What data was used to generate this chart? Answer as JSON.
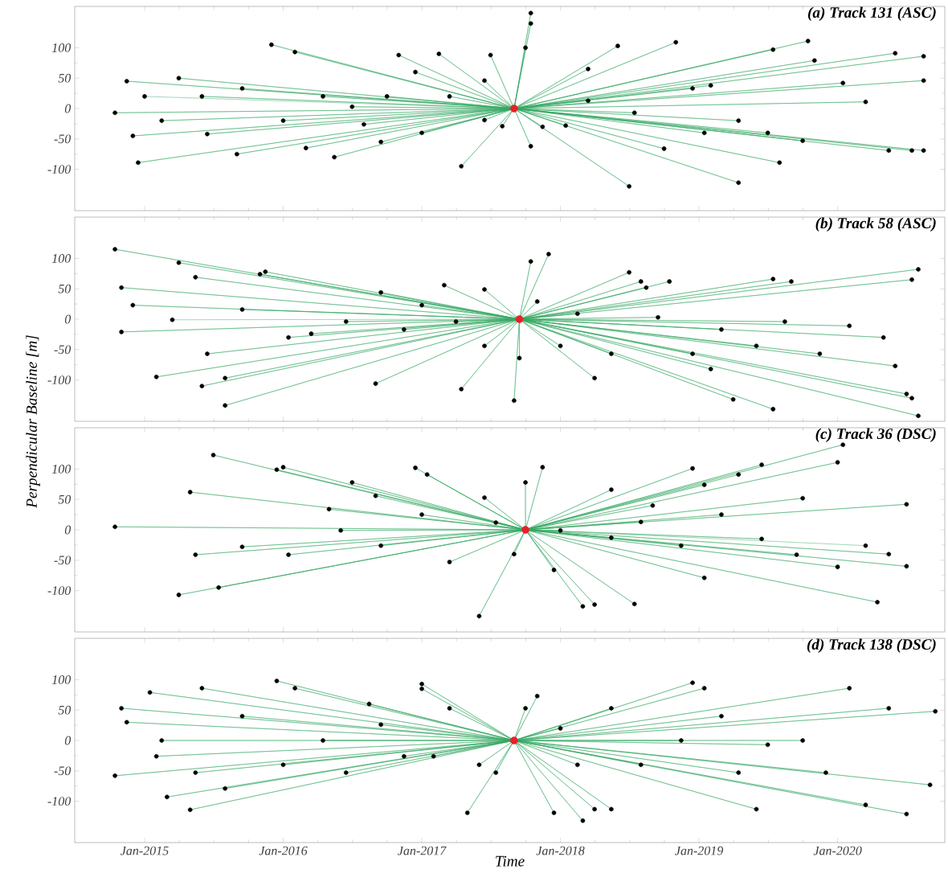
{
  "chart_data": [
    {
      "type": "scatter",
      "title": "(a) Track 131 (ASC)",
      "xlim": [
        "2014-07-01",
        "2020-10-10"
      ],
      "ylim": [
        -168,
        168
      ],
      "tick_labels": "y",
      "xticks": [
        {
          "value": "2015-01-01",
          "label": null
        },
        {
          "value": "2016-01-01",
          "label": null
        },
        {
          "value": "2017-01-01",
          "label": null
        },
        {
          "value": "2018-01-01",
          "label": null
        },
        {
          "value": "2019-01-01",
          "label": null
        },
        {
          "value": "2020-01-01",
          "label": null
        }
      ],
      "yticks": [
        -100,
        -50,
        0,
        50,
        100
      ],
      "series": [
        {
          "type": "line",
          "marker": "none",
          "color": "#35a863",
          "x": [
            "2017-09-01",
            "2014-10-15",
            "2017-09-01",
            "2014-11-15",
            "2017-09-01",
            "2014-12-15",
            "2017-09-01",
            "2014-12-01",
            "2017-09-01",
            "2015-04-01",
            "2017-09-01",
            "2015-06-15",
            "2017-09-01",
            "2015-09-01",
            "2017-09-01",
            "2015-12-01",
            "2017-09-01",
            "2016-02-01",
            "2017-09-01",
            "2016-03-01",
            "2017-09-01",
            "2016-05-15",
            "2017-09-01",
            "2016-07-01",
            "2017-09-01",
            "2016-09-15",
            "2017-09-01",
            "2016-11-01",
            "2017-09-01",
            "2016-12-15",
            "2017-09-01",
            "2017-02-15",
            "2017-09-01",
            "2017-04-15",
            "2017-09-01",
            "2017-06-15",
            "2017-09-01",
            "2017-07-01",
            "2017-09-01",
            "2017-08-01",
            "2017-09-01",
            "2017-10-01",
            "2017-09-01",
            "2017-10-15",
            "2017-09-01",
            "2017-10-15",
            "2017-09-01",
            "2017-10-15",
            "2017-09-01",
            "2017-11-15",
            "2017-09-01",
            "2018-01-15",
            "2017-09-01",
            "2018-03-15",
            "2017-09-01",
            "2018-06-01",
            "2017-09-01",
            "2018-07-01",
            "2017-09-01",
            "2018-10-01",
            "2017-09-01",
            "2018-11-01",
            "2017-09-01",
            "2019-02-01",
            "2017-09-01",
            "2019-04-15",
            "2017-09-01",
            "2019-07-15",
            "2017-09-01",
            "2019-08-01",
            "2017-09-01",
            "2019-10-15",
            "2017-09-01",
            "2019-11-01",
            "2017-09-01",
            "2020-01-15",
            "2017-09-01",
            "2020-03-15",
            "2017-09-01",
            "2020-05-15",
            "2017-09-01",
            "2020-06-01",
            "2017-09-01",
            "2020-07-15",
            "2017-09-01",
            "2020-08-15",
            "2017-09-01",
            "2020-08-15",
            "2017-09-01",
            "2020-08-15",
            "2017-09-01",
            "2019-10-01",
            "2017-09-01",
            "2019-07-01",
            "2017-09-01",
            "2019-04-15",
            "2017-09-01",
            "2019-01-15",
            "2017-09-01",
            "2018-12-15",
            "2017-09-01",
            "2018-07-15",
            "2017-09-01",
            "2018-03-15",
            "2017-09-01",
            "2017-06-15",
            "2017-09-01",
            "2017-03-15",
            "2017-09-01",
            "2017-01-01",
            "2017-09-01",
            "2016-10-01",
            "2017-09-01",
            "2016-08-01",
            "2017-09-01",
            "2016-04-15",
            "2017-09-01",
            "2016-01-01",
            "2017-09-01",
            "2015-09-15",
            "2017-09-01",
            "2015-06-01",
            "2017-09-01",
            "2015-02-15",
            "2017-09-01",
            "2015-01-01"
          ],
          "values": [
            0,
            -7,
            0,
            45,
            0,
            -89,
            0,
            -45,
            0,
            50,
            0,
            -42,
            0,
            -75,
            0,
            105,
            0,
            93,
            0,
            -65,
            0,
            -80,
            0,
            3,
            0,
            -55,
            0,
            88,
            0,
            60,
            0,
            90,
            0,
            -95,
            0,
            -19,
            0,
            88,
            0,
            -29,
            0,
            100,
            0,
            140,
            0,
            157,
            0,
            -62,
            0,
            -30,
            0,
            -28,
            0,
            65,
            0,
            103,
            0,
            -128,
            0,
            -66,
            0,
            109,
            0,
            38,
            0,
            -122,
            0,
            97,
            0,
            -89,
            0,
            111,
            0,
            79,
            0,
            42,
            0,
            11,
            0,
            -69,
            0,
            91,
            0,
            -69,
            0,
            -69,
            0,
            86,
            0,
            46,
            0,
            -53,
            0,
            -40,
            0,
            -20,
            0,
            -40,
            0,
            33,
            0,
            -7,
            0,
            13,
            0,
            46,
            0,
            20,
            0,
            -40,
            0,
            20,
            0,
            -26,
            0,
            20,
            0,
            -20,
            0,
            33,
            0,
            20,
            0,
            -20,
            0,
            20
          ]
        },
        {
          "color": "#000000",
          "marker": "circle",
          "x": [
            "2014-10-15",
            "2014-11-15",
            "2014-12-15",
            "2014-12-01",
            "2015-04-01",
            "2015-06-15",
            "2015-09-01",
            "2015-12-01",
            "2016-02-01",
            "2016-03-01",
            "2016-05-15",
            "2016-07-01",
            "2016-09-15",
            "2016-11-01",
            "2016-12-15",
            "2017-02-15",
            "2017-04-15",
            "2017-06-15",
            "2017-07-01",
            "2017-08-01",
            "2017-10-01",
            "2017-10-15",
            "2017-10-15",
            "2017-10-15",
            "2017-11-15",
            "2018-01-15",
            "2018-03-15",
            "2018-06-01",
            "2018-07-01",
            "2018-10-01",
            "2018-11-01",
            "2019-02-01",
            "2019-04-15",
            "2019-07-15",
            "2019-08-01",
            "2019-10-15",
            "2019-11-01",
            "2020-01-15",
            "2020-03-15",
            "2020-05-15",
            "2020-06-01",
            "2020-07-15",
            "2020-08-15",
            "2020-08-15",
            "2020-08-15",
            "2019-10-01",
            "2019-07-01",
            "2019-04-15",
            "2019-01-15",
            "2018-12-15",
            "2018-07-15",
            "2018-03-15",
            "2017-06-15",
            "2017-03-15",
            "2017-01-01",
            "2016-10-01",
            "2016-08-01",
            "2016-04-15",
            "2016-01-01",
            "2015-09-15",
            "2015-06-01",
            "2015-02-15",
            "2015-01-01"
          ],
          "values": [
            -7,
            45,
            -89,
            -45,
            50,
            -42,
            -75,
            105,
            93,
            -65,
            -80,
            3,
            -55,
            88,
            60,
            90,
            -95,
            -19,
            88,
            -29,
            100,
            140,
            157,
            -62,
            -30,
            -28,
            65,
            103,
            -128,
            -66,
            109,
            38,
            -122,
            97,
            -89,
            111,
            79,
            42,
            11,
            -69,
            91,
            -69,
            -69,
            86,
            46,
            -53,
            -40,
            -20,
            -40,
            33,
            -7,
            13,
            46,
            20,
            -40,
            20,
            -26,
            20,
            -20,
            33,
            20,
            -20,
            20
          ]
        },
        {
          "color": "#e8202a",
          "marker": "circle",
          "x": [
            "2017-09-01"
          ],
          "values": [
            0
          ]
        }
      ]
    },
    {
      "type": "scatter",
      "title": "(b) Track 58 (ASC)",
      "ylabel": "Perpendicular Baseline [m]",
      "xlim": [
        "2014-07-01",
        "2020-10-10"
      ],
      "ylim": [
        -168,
        168
      ],
      "tick_labels": "y",
      "xticks": [
        {
          "value": "2015-01-01",
          "label": null
        },
        {
          "value": "2016-01-01",
          "label": null
        },
        {
          "value": "2017-01-01",
          "label": null
        },
        {
          "value": "2018-01-01",
          "label": null
        },
        {
          "value": "2019-01-01",
          "label": null
        },
        {
          "value": "2020-01-01",
          "label": null
        }
      ],
      "yticks": [
        -100,
        -50,
        0,
        50,
        100
      ],
      "series": [
        {
          "type": "line",
          "marker": "none",
          "color": "#35a863",
          "x": [
            "2017-09-15",
            "2014-10-15",
            "2017-09-15",
            "2014-11-01",
            "2017-09-15",
            "2014-12-01",
            "2017-09-15",
            "2014-11-01",
            "2017-09-15",
            "2015-02-01",
            "2017-09-15",
            "2015-04-01",
            "2017-09-15",
            "2015-05-15",
            "2017-09-15",
            "2015-08-01",
            "2017-09-15",
            "2015-06-01",
            "2017-09-15",
            "2015-11-01",
            "2017-09-15",
            "2015-11-15",
            "2017-09-15",
            "2015-08-01",
            "2017-09-15",
            "2015-06-15",
            "2017-09-15",
            "2016-03-15",
            "2017-09-15",
            "2016-09-15",
            "2017-09-15",
            "2016-09-01",
            "2017-09-15",
            "2017-03-01",
            "2017-09-15",
            "2017-04-15",
            "2017-09-15",
            "2017-06-15",
            "2017-09-15",
            "2017-09-01",
            "2017-09-15",
            "2017-09-15",
            "2017-09-15",
            "2017-10-15",
            "2017-09-15",
            "2017-12-01",
            "2017-09-15",
            "2017-11-01",
            "2017-09-15",
            "2018-01-01",
            "2017-09-15",
            "2018-07-01",
            "2017-09-15",
            "2018-08-01",
            "2017-09-15",
            "2018-08-15",
            "2017-09-15",
            "2018-10-15",
            "2017-09-15",
            "2019-02-01",
            "2017-09-15",
            "2019-04-01",
            "2017-09-15",
            "2019-07-15",
            "2017-09-15",
            "2019-07-15",
            "2017-09-15",
            "2019-09-01",
            "2017-09-15",
            "2020-07-15",
            "2017-09-15",
            "2020-08-01",
            "2017-09-15",
            "2020-08-01",
            "2017-09-15",
            "2020-07-15",
            "2017-09-15",
            "2020-07-01",
            "2017-09-15",
            "2020-06-01",
            "2017-09-15",
            "2020-05-01",
            "2017-09-15",
            "2020-02-01",
            "2017-09-15",
            "2019-11-15",
            "2017-09-15",
            "2019-08-15",
            "2017-09-15",
            "2019-06-01",
            "2017-09-15",
            "2019-03-01",
            "2017-09-15",
            "2018-12-15",
            "2017-09-15",
            "2018-09-15",
            "2017-09-15",
            "2018-05-15",
            "2017-09-15",
            "2018-02-15",
            "2017-09-15",
            "2018-04-01",
            "2017-09-15",
            "2017-06-15",
            "2017-09-15",
            "2017-04-01",
            "2017-09-15",
            "2017-01-01",
            "2017-09-15",
            "2016-11-15",
            "2017-09-15",
            "2016-06-15",
            "2017-09-15",
            "2016-01-15",
            "2017-09-15",
            "2015-09-15",
            "2017-09-15",
            "2015-03-15"
          ],
          "values": [
            0,
            115,
            0,
            52,
            0,
            23,
            0,
            -21,
            0,
            -95,
            0,
            93,
            0,
            69,
            0,
            -142,
            0,
            -110,
            0,
            74,
            0,
            78,
            0,
            -97,
            0,
            -57,
            0,
            -24,
            0,
            44,
            0,
            -106,
            0,
            56,
            0,
            -115,
            0,
            49,
            0,
            -134,
            0,
            -64,
            0,
            95,
            0,
            107,
            0,
            29,
            0,
            -44,
            0,
            77,
            0,
            62,
            0,
            52,
            0,
            62,
            0,
            -82,
            0,
            -132,
            0,
            66,
            0,
            -148,
            0,
            62,
            0,
            65,
            0,
            82,
            0,
            -159,
            0,
            -130,
            0,
            -123,
            0,
            -77,
            0,
            -30,
            0,
            -11,
            0,
            -57,
            0,
            -4,
            0,
            -44,
            0,
            -17,
            0,
            -57,
            0,
            3,
            0,
            -57,
            0,
            9,
            0,
            -97,
            0,
            -44,
            0,
            -4,
            0,
            23,
            0,
            -17,
            0,
            -4,
            0,
            -30,
            0,
            16,
            0,
            -1
          ]
        },
        {
          "color": "#000000",
          "marker": "circle",
          "x": [
            "2014-10-15",
            "2014-11-01",
            "2014-12-01",
            "2014-11-01",
            "2015-02-01",
            "2015-04-01",
            "2015-05-15",
            "2015-08-01",
            "2015-06-01",
            "2015-11-01",
            "2015-11-15",
            "2015-08-01",
            "2015-06-15",
            "2016-03-15",
            "2016-09-15",
            "2016-09-01",
            "2017-03-01",
            "2017-04-15",
            "2017-06-15",
            "2017-09-01",
            "2017-09-15",
            "2017-10-15",
            "2017-12-01",
            "2017-11-01",
            "2018-01-01",
            "2018-07-01",
            "2018-08-01",
            "2018-08-15",
            "2018-10-15",
            "2019-02-01",
            "2019-04-01",
            "2019-07-15",
            "2019-07-15",
            "2019-09-01",
            "2020-07-15",
            "2020-08-01",
            "2020-08-01",
            "2020-07-15",
            "2020-07-01",
            "2020-06-01",
            "2020-05-01",
            "2020-02-01",
            "2019-11-15",
            "2019-08-15",
            "2019-06-01",
            "2019-03-01",
            "2018-12-15",
            "2018-09-15",
            "2018-05-15",
            "2018-02-15",
            "2018-04-01",
            "2017-06-15",
            "2017-04-01",
            "2017-01-01",
            "2016-11-15",
            "2016-06-15",
            "2016-01-15",
            "2015-09-15",
            "2015-03-15"
          ],
          "values": [
            115,
            52,
            23,
            -21,
            -95,
            93,
            69,
            -142,
            -110,
            74,
            78,
            -97,
            -57,
            -24,
            44,
            -106,
            56,
            -115,
            49,
            -134,
            -64,
            95,
            107,
            29,
            -44,
            77,
            62,
            52,
            62,
            -82,
            -132,
            66,
            -148,
            62,
            65,
            82,
            -159,
            -130,
            -123,
            -77,
            -30,
            -11,
            -57,
            -4,
            -44,
            -17,
            -57,
            3,
            -57,
            9,
            -97,
            -44,
            -4,
            23,
            -17,
            -4,
            -30,
            16,
            -1
          ]
        },
        {
          "color": "#e8202a",
          "marker": "circle",
          "x": [
            "2017-09-15"
          ],
          "values": [
            0
          ]
        }
      ]
    },
    {
      "type": "scatter",
      "title": "(c) Track 36 (DSC)",
      "xlim": [
        "2014-07-01",
        "2020-10-10"
      ],
      "ylim": [
        -168,
        168
      ],
      "tick_labels": "y",
      "xticks": [
        {
          "value": "2015-01-01",
          "label": null
        },
        {
          "value": "2016-01-01",
          "label": null
        },
        {
          "value": "2017-01-01",
          "label": null
        },
        {
          "value": "2018-01-01",
          "label": null
        },
        {
          "value": "2019-01-01",
          "label": null
        },
        {
          "value": "2020-01-01",
          "label": null
        }
      ],
      "yticks": [
        -100,
        -50,
        0,
        50,
        100
      ],
      "series": [
        {
          "type": "line",
          "marker": "none",
          "color": "#35a863",
          "x": [
            "2017-10-01",
            "2014-10-15",
            "2017-10-01",
            "2015-04-01",
            "2017-10-01",
            "2015-05-01",
            "2017-10-01",
            "2015-05-15",
            "2017-10-01",
            "2015-07-01",
            "2017-10-01",
            "2015-07-15",
            "2017-10-01",
            "2015-12-15",
            "2017-10-01",
            "2016-01-01",
            "2017-10-01",
            "2016-05-01",
            "2017-10-01",
            "2016-07-01",
            "2017-10-01",
            "2016-09-01",
            "2017-10-01",
            "2016-12-15",
            "2017-10-01",
            "2017-01-15",
            "2017-10-01",
            "2017-06-01",
            "2017-10-01",
            "2017-07-15",
            "2017-10-01",
            "2017-09-01",
            "2017-10-01",
            "2017-11-15",
            "2017-10-01",
            "2017-10-01",
            "2017-10-01",
            "2017-12-15",
            "2017-10-01",
            "2018-03-01",
            "2017-10-01",
            "2018-04-01",
            "2017-10-01",
            "2018-07-15",
            "2017-10-01",
            "2018-09-01",
            "2017-10-01",
            "2018-12-15",
            "2017-10-01",
            "2019-01-15",
            "2017-10-01",
            "2019-03-01",
            "2017-10-01",
            "2019-04-15",
            "2017-10-01",
            "2019-06-15",
            "2017-10-01",
            "2020-01-15",
            "2017-10-01",
            "2020-01-01",
            "2017-10-01",
            "2020-07-01",
            "2017-10-01",
            "2020-07-01",
            "2017-10-01",
            "2020-04-15",
            "2017-10-01",
            "2020-05-15",
            "2017-10-01",
            "2020-01-01",
            "2017-10-01",
            "2019-09-15",
            "2017-10-01",
            "2019-06-15",
            "2017-10-01",
            "2019-01-15",
            "2017-10-01",
            "2018-11-15",
            "2017-10-01",
            "2018-08-01",
            "2017-10-01",
            "2018-05-15",
            "2017-10-01",
            "2018-01-01",
            "2017-10-01",
            "2017-03-15",
            "2017-10-01",
            "2017-01-01",
            "2017-10-01",
            "2016-09-15",
            "2017-10-01",
            "2016-06-01",
            "2017-10-01",
            "2016-01-15",
            "2017-10-01",
            "2015-09-15",
            "2017-10-01",
            "2017-06-15",
            "2017-10-01",
            "2018-05-15",
            "2017-10-01",
            "2019-10-01",
            "2017-10-01",
            "2020-03-15"
          ],
          "values": [
            0,
            5,
            0,
            -107,
            0,
            62,
            0,
            -41,
            0,
            123,
            0,
            -95,
            0,
            99,
            0,
            103,
            0,
            34,
            0,
            78,
            0,
            56,
            0,
            102,
            0,
            91,
            0,
            -142,
            0,
            12,
            0,
            -40,
            0,
            103,
            0,
            78,
            0,
            -66,
            0,
            -126,
            0,
            -123,
            0,
            -122,
            0,
            40,
            0,
            101,
            0,
            74,
            0,
            25,
            0,
            91,
            0,
            107,
            0,
            140,
            0,
            111,
            0,
            42,
            0,
            -60,
            0,
            -119,
            0,
            -40,
            0,
            -61,
            0,
            -41,
            0,
            -15,
            0,
            -79,
            0,
            -26,
            0,
            13,
            0,
            -13,
            0,
            -1,
            0,
            -53,
            0,
            25,
            0,
            -26,
            0,
            -1,
            0,
            -41,
            0,
            -28,
            0,
            53,
            0,
            66,
            0,
            52,
            0,
            -26
          ]
        },
        {
          "color": "#000000",
          "marker": "circle",
          "x": [
            "2014-10-15",
            "2015-04-01",
            "2015-05-01",
            "2015-05-15",
            "2015-07-01",
            "2015-07-15",
            "2015-12-15",
            "2016-01-01",
            "2016-05-01",
            "2016-07-01",
            "2016-09-01",
            "2016-12-15",
            "2017-01-15",
            "2017-06-01",
            "2017-07-15",
            "2017-09-01",
            "2017-11-15",
            "2017-10-01",
            "2017-12-15",
            "2018-03-01",
            "2018-04-01",
            "2018-07-15",
            "2018-09-01",
            "2018-12-15",
            "2019-01-15",
            "2019-03-01",
            "2019-04-15",
            "2019-06-15",
            "2020-01-15",
            "2020-01-01",
            "2020-07-01",
            "2020-07-01",
            "2020-04-15",
            "2020-05-15",
            "2020-01-01",
            "2019-09-15",
            "2019-06-15",
            "2019-01-15",
            "2018-11-15",
            "2018-08-01",
            "2018-05-15",
            "2018-01-01",
            "2017-03-15",
            "2017-01-01",
            "2016-09-15",
            "2016-06-01",
            "2016-01-15",
            "2015-09-15",
            "2017-06-15",
            "2018-05-15",
            "2019-10-01",
            "2020-03-15"
          ],
          "values": [
            5,
            -107,
            62,
            -41,
            123,
            -95,
            99,
            103,
            34,
            78,
            56,
            102,
            91,
            -142,
            12,
            -40,
            103,
            78,
            -66,
            -126,
            -123,
            -122,
            40,
            101,
            74,
            25,
            91,
            107,
            140,
            111,
            42,
            -60,
            -119,
            -40,
            -61,
            -41,
            -15,
            -79,
            -26,
            13,
            -13,
            -1,
            -53,
            25,
            -26,
            -1,
            -41,
            -28,
            53,
            66,
            52,
            -26
          ]
        },
        {
          "color": "#e8202a",
          "marker": "circle",
          "x": [
            "2017-10-01"
          ],
          "values": [
            0
          ]
        }
      ]
    },
    {
      "type": "scatter",
      "title": "(d) Track 138 (DSC)",
      "xlabel": "Time",
      "xlim": [
        "2014-07-01",
        "2020-10-10"
      ],
      "ylim": [
        -168,
        168
      ],
      "xticks": [
        {
          "value": "2015-01-01",
          "label": "Jan-2015"
        },
        {
          "value": "2016-01-01",
          "label": "Jan-2016"
        },
        {
          "value": "2017-01-01",
          "label": "Jan-2017"
        },
        {
          "value": "2018-01-01",
          "label": "Jan-2018"
        },
        {
          "value": "2019-01-01",
          "label": "Jan-2019"
        },
        {
          "value": "2020-01-01",
          "label": "Jan-2020"
        }
      ],
      "yticks": [
        -100,
        -50,
        0,
        50,
        100
      ],
      "series": [
        {
          "type": "line",
          "marker": "none",
          "color": "#35a863",
          "x": [
            "2017-09-01",
            "2014-10-15",
            "2017-09-01",
            "2014-11-01",
            "2017-09-01",
            "2014-11-15",
            "2017-09-01",
            "2015-01-15",
            "2017-09-01",
            "2015-03-01",
            "2017-09-01",
            "2015-05-01",
            "2017-09-01",
            "2015-06-01",
            "2017-09-01",
            "2015-12-15",
            "2017-09-01",
            "2016-02-01",
            "2017-09-01",
            "2016-08-15",
            "2017-09-01",
            "2017-01-01",
            "2017-09-01",
            "2017-01-01",
            "2017-09-01",
            "2017-03-15",
            "2017-09-01",
            "2017-05-01",
            "2017-09-01",
            "2017-06-01",
            "2017-09-01",
            "2017-10-01",
            "2017-09-01",
            "2017-11-01",
            "2017-09-01",
            "2017-12-15",
            "2017-09-01",
            "2018-03-01",
            "2017-09-01",
            "2018-04-01",
            "2017-09-01",
            "2018-05-15",
            "2017-09-01",
            "2018-08-01",
            "2017-09-01",
            "2018-12-15",
            "2017-09-01",
            "2019-01-15",
            "2017-09-01",
            "2019-06-01",
            "2017-09-01",
            "2019-07-01",
            "2017-09-01",
            "2020-02-01",
            "2017-09-01",
            "2020-03-15",
            "2017-09-01",
            "2020-07-01",
            "2017-09-01",
            "2020-09-01",
            "2017-09-01",
            "2020-09-15",
            "2017-09-01",
            "2020-05-15",
            "2017-09-01",
            "2019-10-01",
            "2017-09-01",
            "2019-12-01",
            "2017-09-01",
            "2019-04-15",
            "2017-09-01",
            "2018-11-15",
            "2017-09-01",
            "2019-03-01",
            "2017-09-01",
            "2018-05-15",
            "2017-09-01",
            "2018-02-15",
            "2017-09-01",
            "2018-01-01",
            "2017-09-01",
            "2017-07-15",
            "2017-09-01",
            "2016-11-15",
            "2017-09-01",
            "2016-09-15",
            "2017-09-01",
            "2016-06-15",
            "2017-09-01",
            "2016-04-15",
            "2017-09-01",
            "2016-01-01",
            "2017-09-01",
            "2015-09-15",
            "2017-09-01",
            "2015-08-01",
            "2017-09-01",
            "2015-05-15",
            "2017-09-01",
            "2015-02-15",
            "2017-09-01",
            "2015-02-01",
            "2017-09-01",
            "2017-02-01"
          ],
          "values": [
            0,
            -58,
            0,
            53,
            0,
            30,
            0,
            79,
            0,
            -93,
            0,
            -114,
            0,
            86,
            0,
            98,
            0,
            86,
            0,
            60,
            0,
            93,
            0,
            85,
            0,
            53,
            0,
            -119,
            0,
            -40,
            0,
            53,
            0,
            73,
            0,
            -119,
            0,
            -132,
            0,
            -113,
            0,
            -113,
            0,
            -40,
            0,
            95,
            0,
            86,
            0,
            -113,
            0,
            -7,
            0,
            86,
            0,
            -106,
            0,
            -121,
            0,
            -73,
            0,
            48,
            0,
            53,
            0,
            0,
            0,
            -53,
            0,
            -53,
            0,
            0,
            0,
            40,
            0,
            53,
            0,
            -40,
            0,
            20,
            0,
            -53,
            0,
            -26,
            0,
            26,
            0,
            -53,
            0,
            0,
            0,
            -40,
            0,
            40,
            0,
            -79,
            0,
            -53,
            0,
            0,
            0,
            -26,
            0,
            -26
          ]
        },
        {
          "color": "#000000",
          "marker": "circle",
          "x": [
            "2014-10-15",
            "2014-11-01",
            "2014-11-15",
            "2015-01-15",
            "2015-03-01",
            "2015-05-01",
            "2015-06-01",
            "2015-12-15",
            "2016-02-01",
            "2016-08-15",
            "2017-01-01",
            "2017-01-01",
            "2017-03-15",
            "2017-05-01",
            "2017-06-01",
            "2017-10-01",
            "2017-11-01",
            "2017-12-15",
            "2018-03-01",
            "2018-04-01",
            "2018-05-15",
            "2018-08-01",
            "2018-12-15",
            "2019-01-15",
            "2019-06-01",
            "2019-07-01",
            "2020-02-01",
            "2020-03-15",
            "2020-07-01",
            "2020-09-01",
            "2020-09-15",
            "2020-05-15",
            "2019-10-01",
            "2019-12-01",
            "2019-04-15",
            "2018-11-15",
            "2019-03-01",
            "2018-05-15",
            "2018-02-15",
            "2018-01-01",
            "2017-07-15",
            "2016-11-15",
            "2016-09-15",
            "2016-06-15",
            "2016-04-15",
            "2016-01-01",
            "2015-09-15",
            "2015-08-01",
            "2015-05-15",
            "2015-02-15",
            "2015-02-01",
            "2017-02-01"
          ],
          "values": [
            -58,
            53,
            30,
            79,
            -93,
            -114,
            86,
            98,
            86,
            60,
            93,
            85,
            53,
            -119,
            -40,
            53,
            73,
            -119,
            -132,
            -113,
            -113,
            -40,
            95,
            86,
            -113,
            -7,
            86,
            -106,
            -121,
            -73,
            48,
            53,
            0,
            -53,
            -53,
            0,
            40,
            53,
            -40,
            20,
            -53,
            -26,
            26,
            -53,
            0,
            -40,
            40,
            -79,
            -53,
            0,
            -26,
            -26
          ]
        },
        {
          "color": "#e8202a",
          "marker": "circle",
          "x": [
            "2017-09-01"
          ],
          "values": [
            0
          ]
        }
      ]
    }
  ]
}
